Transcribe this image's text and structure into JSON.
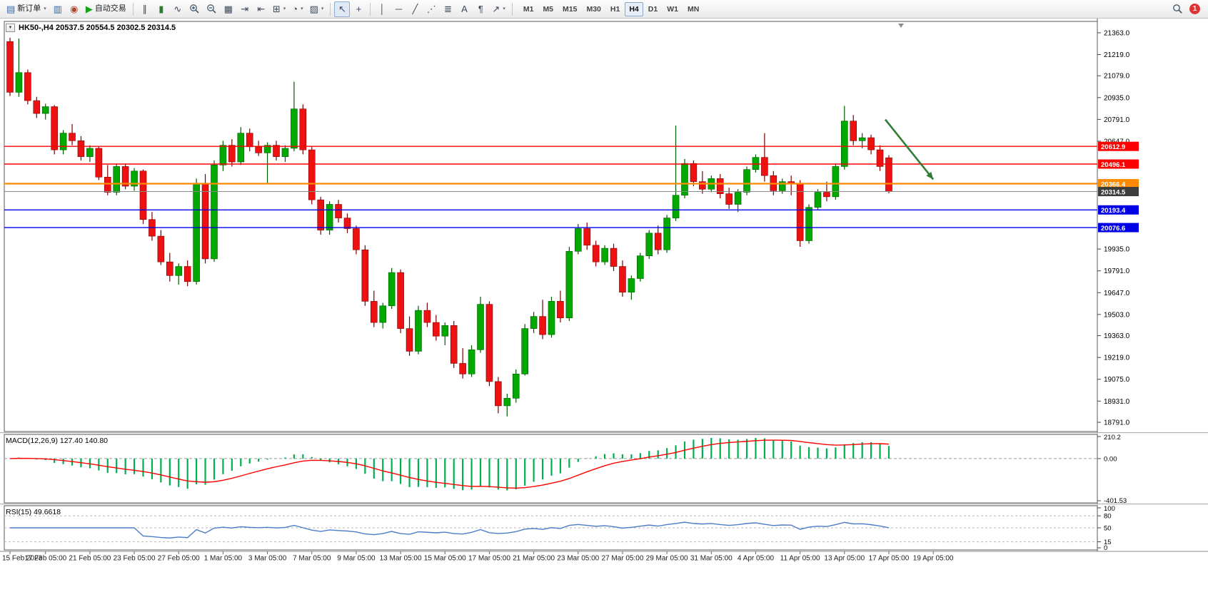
{
  "toolbar": {
    "groups": [
      {
        "items": [
          {
            "name": "new-order-button",
            "icon": "order",
            "label": "新订单",
            "caret": true
          },
          {
            "name": "profiles-button",
            "icon": "profiles"
          },
          {
            "name": "market-watch-button",
            "icon": "sound"
          },
          {
            "name": "autotrading-button",
            "icon": "play",
            "label": "自动交易"
          }
        ]
      },
      {
        "items": [
          {
            "name": "bar-chart-button",
            "icon": "bars"
          },
          {
            "name": "candlestick-chart-button",
            "icon": "candles"
          },
          {
            "name": "line-chart-button",
            "icon": "line"
          },
          {
            "name": "zoom-in-button",
            "icon": "zoom-in"
          },
          {
            "name": "zoom-out-button",
            "icon": "zoom-out"
          },
          {
            "name": "tile-windows-button",
            "icon": "tile"
          },
          {
            "name": "auto-scroll-button",
            "icon": "autoscroll"
          },
          {
            "name": "chart-shift-button",
            "icon": "shift"
          },
          {
            "name": "new-chart-button",
            "icon": "new-chart",
            "caret": true
          },
          {
            "name": "periods-button",
            "icon": "clock",
            "caret": true
          },
          {
            "name": "templates-button",
            "icon": "template",
            "caret": true
          }
        ]
      },
      {
        "items": [
          {
            "name": "cursor-button",
            "icon": "cursor",
            "active": true
          },
          {
            "name": "crosshair-button",
            "icon": "crosshair"
          }
        ]
      },
      {
        "items": [
          {
            "name": "vertical-line-button",
            "icon": "vline"
          },
          {
            "name": "horizontal-line-button",
            "icon": "hline"
          },
          {
            "name": "trendline-button",
            "icon": "tline"
          },
          {
            "name": "equidistant-channel-button",
            "icon": "channel"
          },
          {
            "name": "fibonacci-button",
            "icon": "fibo"
          },
          {
            "name": "text-button",
            "icon": "text"
          },
          {
            "name": "label-button",
            "icon": "label"
          },
          {
            "name": "arrows-button",
            "icon": "arrow",
            "caret": true
          }
        ]
      }
    ],
    "timeframes": {
      "items": [
        "M1",
        "M5",
        "M15",
        "M30",
        "H1",
        "H4",
        "D1",
        "W1",
        "MN"
      ],
      "active": "H4"
    },
    "notification_count": "1"
  },
  "chart": {
    "title": "HK50-,H4 20537.5 20554.5 20302.5 20314.5",
    "symbol": "HK50-",
    "timeframe": "H4",
    "open": "20537.5",
    "high": "20554.5",
    "low": "20302.5",
    "close": "20314.5"
  },
  "chart_data": [
    {
      "type": "candlestick",
      "title": "HK50-,H4",
      "up_color": "#00A800",
      "down_color": "#EE1111",
      "ylim": [
        18730,
        21438
      ],
      "y_ticks": [
        21363.0,
        21219.0,
        21079.0,
        20935.0,
        20791.0,
        20647.0,
        19935.0,
        19791.0,
        19647.0,
        19503.0,
        19363.0,
        19219.0,
        19075.0,
        18931.0,
        18791.0
      ],
      "price_lines": [
        {
          "price": 20612.9,
          "color": "#FF0000",
          "width": 1.4
        },
        {
          "price": 20496.1,
          "color": "#FF0000",
          "width": 1.4
        },
        {
          "price": 20366.4,
          "color": "#FF8A00",
          "width": 2.2
        },
        {
          "price": 20193.4,
          "color": "#0000E6",
          "width": 1.4
        },
        {
          "price": 20076.6,
          "color": "#0000E6",
          "width": 1.4
        }
      ],
      "current_price": {
        "value": 20314.5,
        "line_color": "#8a8a8a",
        "badge_color": "#3c3c3c"
      },
      "annotation_arrow": {
        "from_index": 98.6,
        "from_price": 20790,
        "to_index": 104.0,
        "to_price": 20395,
        "color": "#2F7D32"
      },
      "x_labels": [
        {
          "i": 0,
          "text": "15 Feb 2023",
          "align": "left"
        },
        {
          "i": 4,
          "text": "17 Feb 05:00"
        },
        {
          "i": 9,
          "text": "21 Feb 05:00"
        },
        {
          "i": 14,
          "text": "23 Feb 05:00"
        },
        {
          "i": 19,
          "text": "27 Feb 05:00"
        },
        {
          "i": 24,
          "text": "1 Mar 05:00"
        },
        {
          "i": 29,
          "text": "3 Mar 05:00"
        },
        {
          "i": 34,
          "text": "7 Mar 05:00"
        },
        {
          "i": 39,
          "text": "9 Mar 05:00"
        },
        {
          "i": 44,
          "text": "13 Mar 05:00"
        },
        {
          "i": 49,
          "text": "15 Mar 05:00"
        },
        {
          "i": 54,
          "text": "17 Mar 05:00"
        },
        {
          "i": 59,
          "text": "21 Mar 05:00"
        },
        {
          "i": 64,
          "text": "23 Mar 05:00"
        },
        {
          "i": 69,
          "text": "27 Mar 05:00"
        },
        {
          "i": 74,
          "text": "29 Mar 05:00"
        },
        {
          "i": 79,
          "text": "31 Mar 05:00"
        },
        {
          "i": 84,
          "text": "4 Apr 05:00"
        },
        {
          "i": 89,
          "text": "11 Apr 05:00"
        },
        {
          "i": 94,
          "text": "13 Apr 05:00"
        },
        {
          "i": 99,
          "text": "17 Apr 05:00"
        },
        {
          "i": 104,
          "text": "19 Apr 05:00"
        }
      ],
      "candles": [
        [
          21305,
          21330,
          20945,
          20970
        ],
        [
          20970,
          21325,
          20940,
          21100
        ],
        [
          21100,
          21120,
          20890,
          20915
        ],
        [
          20915,
          20940,
          20800,
          20830
        ],
        [
          20830,
          20895,
          20790,
          20875
        ],
        [
          20875,
          20885,
          20560,
          20590
        ],
        [
          20590,
          20720,
          20560,
          20700
        ],
        [
          20700,
          20760,
          20620,
          20650
        ],
        [
          20650,
          20680,
          20520,
          20545
        ],
        [
          20545,
          20620,
          20510,
          20600
        ],
        [
          20600,
          20610,
          20390,
          20410
        ],
        [
          20410,
          20490,
          20290,
          20310
        ],
        [
          20310,
          20500,
          20290,
          20480
        ],
        [
          20480,
          20500,
          20330,
          20350
        ],
        [
          20350,
          20470,
          20320,
          20450
        ],
        [
          20450,
          20460,
          20100,
          20130
        ],
        [
          20130,
          20180,
          19990,
          20020
        ],
        [
          20020,
          20060,
          19830,
          19850
        ],
        [
          19850,
          19910,
          19720,
          19760
        ],
        [
          19760,
          19840,
          19700,
          19820
        ],
        [
          19820,
          19860,
          19690,
          19720
        ],
        [
          19720,
          20400,
          19700,
          20370
        ],
        [
          20370,
          20430,
          19840,
          19870
        ],
        [
          19870,
          20520,
          19850,
          20490
        ],
        [
          20490,
          20650,
          20450,
          20620
        ],
        [
          20620,
          20660,
          20480,
          20510
        ],
        [
          20510,
          20740,
          20490,
          20700
        ],
        [
          20700,
          20730,
          20580,
          20610
        ],
        [
          20610,
          20650,
          20550,
          20570
        ],
        [
          20570,
          20640,
          20370,
          20620
        ],
        [
          20620,
          20650,
          20520,
          20545
        ],
        [
          20545,
          20620,
          20510,
          20600
        ],
        [
          20600,
          21040,
          20580,
          20860
        ],
        [
          20860,
          20890,
          20560,
          20590
        ],
        [
          20590,
          20610,
          20230,
          20260
        ],
        [
          20260,
          20280,
          20030,
          20060
        ],
        [
          20060,
          20250,
          20030,
          20230
        ],
        [
          20230,
          20260,
          20110,
          20140
        ],
        [
          20140,
          20170,
          20040,
          20070
        ],
        [
          20070,
          20090,
          19900,
          19930
        ],
        [
          19930,
          19960,
          19560,
          19590
        ],
        [
          19590,
          19660,
          19420,
          19450
        ],
        [
          19450,
          19580,
          19410,
          19560
        ],
        [
          19560,
          19810,
          19540,
          19780
        ],
        [
          19780,
          19800,
          19380,
          19410
        ],
        [
          19410,
          19490,
          19230,
          19260
        ],
        [
          19260,
          19560,
          19240,
          19530
        ],
        [
          19530,
          19580,
          19420,
          19450
        ],
        [
          19450,
          19500,
          19330,
          19360
        ],
        [
          19360,
          19450,
          19300,
          19430
        ],
        [
          19430,
          19460,
          19150,
          19180
        ],
        [
          19180,
          19280,
          19080,
          19110
        ],
        [
          19110,
          19300,
          19090,
          19270
        ],
        [
          19270,
          19620,
          19250,
          19570
        ],
        [
          19570,
          19590,
          19030,
          19060
        ],
        [
          19060,
          19090,
          18850,
          18900
        ],
        [
          18900,
          18980,
          18830,
          18950
        ],
        [
          18950,
          19140,
          18920,
          19110
        ],
        [
          19110,
          19440,
          19100,
          19410
        ],
        [
          19410,
          19520,
          19380,
          19490
        ],
        [
          19490,
          19600,
          19340,
          19370
        ],
        [
          19370,
          19620,
          19350,
          19590
        ],
        [
          19590,
          19660,
          19450,
          19480
        ],
        [
          19480,
          19950,
          19460,
          19920
        ],
        [
          19920,
          20100,
          19900,
          20070
        ],
        [
          20070,
          20110,
          19930,
          19960
        ],
        [
          19960,
          19990,
          19820,
          19850
        ],
        [
          19850,
          19960,
          19830,
          19940
        ],
        [
          19940,
          19970,
          19790,
          19820
        ],
        [
          19820,
          19860,
          19620,
          19650
        ],
        [
          19650,
          19760,
          19600,
          19740
        ],
        [
          19740,
          19910,
          19720,
          19890
        ],
        [
          19890,
          20060,
          19870,
          20040
        ],
        [
          20040,
          20090,
          19900,
          19930
        ],
        [
          19930,
          20160,
          19910,
          20140
        ],
        [
          20140,
          20750,
          20120,
          20290
        ],
        [
          20290,
          20530,
          20270,
          20500
        ],
        [
          20500,
          20520,
          20350,
          20380
        ],
        [
          20380,
          20450,
          20300,
          20330
        ],
        [
          20330,
          20420,
          20310,
          20400
        ],
        [
          20400,
          20430,
          20270,
          20300
        ],
        [
          20300,
          20340,
          20200,
          20230
        ],
        [
          20230,
          20330,
          20180,
          20310
        ],
        [
          20310,
          20480,
          20290,
          20460
        ],
        [
          20460,
          20560,
          20440,
          20540
        ],
        [
          20540,
          20700,
          20380,
          20420
        ],
        [
          20420,
          20450,
          20290,
          20320
        ],
        [
          20320,
          20400,
          20300,
          20380
        ],
        [
          20380,
          20420,
          20290,
          20370
        ],
        [
          20370,
          20390,
          19950,
          19990
        ],
        [
          19990,
          20230,
          19970,
          20210
        ],
        [
          20210,
          20330,
          20190,
          20310
        ],
        [
          20310,
          20380,
          20250,
          20280
        ],
        [
          20280,
          20500,
          20260,
          20480
        ],
        [
          20480,
          20880,
          20460,
          20780
        ],
        [
          20780,
          20820,
          20620,
          20650
        ],
        [
          20650,
          20700,
          20600,
          20670
        ],
        [
          20670,
          20690,
          20560,
          20590
        ],
        [
          20590,
          20620,
          20450,
          20480
        ],
        [
          20537.5,
          20554.5,
          20302.5,
          20314.5
        ]
      ]
    },
    {
      "type": "macd",
      "label": "MACD(12,26,9) 127.40 140.80",
      "params": {
        "fast": 12,
        "slow": 26,
        "signal": 9
      },
      "values": {
        "macd": "127.40",
        "signal": "140.80"
      },
      "histogram_color": "#00B050",
      "signal_color": "#FF0000",
      "range": [
        -401.53,
        210.2
      ],
      "y_ticks": [
        {
          "v": 210.2,
          "label": "210.2"
        },
        {
          "v": 0,
          "label": "0.00"
        },
        {
          "v": -401.53,
          "label": "-401.53"
        }
      ]
    },
    {
      "type": "rsi",
      "label": "RSI(15) 49.6618",
      "period": 15,
      "value": "49.6618",
      "line_color": "#4E7DC8",
      "range": [
        0,
        100
      ],
      "levels": [
        80,
        50,
        15
      ],
      "y_ticks": [
        {
          "v": 100,
          "label": "100"
        },
        {
          "v": 80,
          "label": "80"
        },
        {
          "v": 50,
          "label": "50"
        },
        {
          "v": 15,
          "label": "15"
        },
        {
          "v": 0,
          "label": "0"
        }
      ]
    }
  ]
}
